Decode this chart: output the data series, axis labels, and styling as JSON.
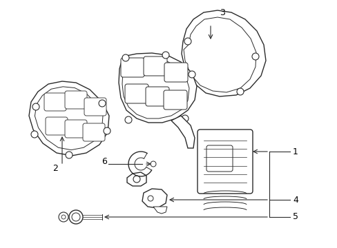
{
  "background_color": "#ffffff",
  "line_color": "#2a2a2a",
  "label_color": "#000000",
  "fig_width": 4.89,
  "fig_height": 3.6,
  "dpi": 100,
  "label_fontsize": 9
}
